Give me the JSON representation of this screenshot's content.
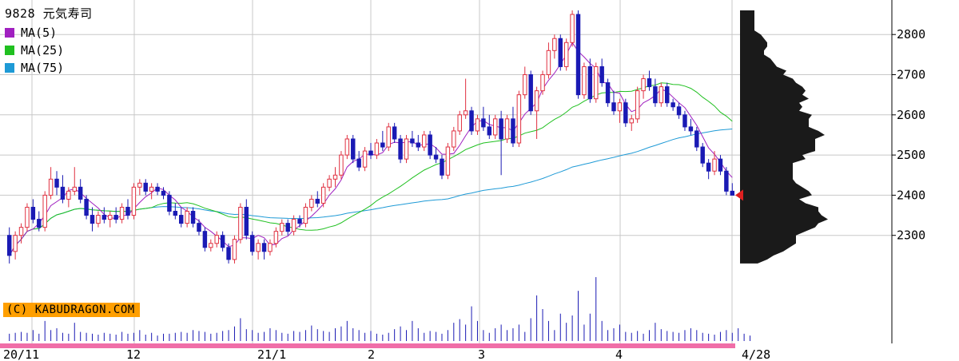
{
  "chart_data": {
    "type": "candlestick",
    "title": "9828 元気寿司",
    "legend": [
      {
        "name": "MA(5)",
        "color": "#a020c0"
      },
      {
        "name": "MA(25)",
        "color": "#20c020"
      },
      {
        "name": "MA(75)",
        "color": "#1e9ad6"
      }
    ],
    "credit": "(C) KABUDRAGON.COM",
    "y_ticks": [
      2300,
      2400,
      2500,
      2600,
      2700,
      2800
    ],
    "ylim": [
      2200,
      2870
    ],
    "x_labels": [
      "20/11",
      "12",
      "21/1",
      "2",
      "3",
      "4",
      "4/28"
    ],
    "last_close": 2400,
    "up_color": "#e03040",
    "down_color": "#1a1ab4",
    "candles": [
      {
        "o": 2300,
        "h": 2320,
        "l": 2230,
        "c": 2250
      },
      {
        "o": 2260,
        "h": 2310,
        "l": 2240,
        "c": 2300
      },
      {
        "o": 2300,
        "h": 2330,
        "l": 2280,
        "c": 2320
      },
      {
        "o": 2320,
        "h": 2380,
        "l": 2310,
        "c": 2370
      },
      {
        "o": 2370,
        "h": 2390,
        "l": 2330,
        "c": 2340
      },
      {
        "o": 2340,
        "h": 2360,
        "l": 2310,
        "c": 2320
      },
      {
        "o": 2320,
        "h": 2410,
        "l": 2310,
        "c": 2400
      },
      {
        "o": 2400,
        "h": 2470,
        "l": 2390,
        "c": 2440
      },
      {
        "o": 2440,
        "h": 2460,
        "l": 2400,
        "c": 2420
      },
      {
        "o": 2420,
        "h": 2450,
        "l": 2380,
        "c": 2390
      },
      {
        "o": 2390,
        "h": 2420,
        "l": 2370,
        "c": 2410
      },
      {
        "o": 2410,
        "h": 2470,
        "l": 2400,
        "c": 2420
      },
      {
        "o": 2420,
        "h": 2440,
        "l": 2380,
        "c": 2390
      },
      {
        "o": 2390,
        "h": 2400,
        "l": 2340,
        "c": 2350
      },
      {
        "o": 2350,
        "h": 2370,
        "l": 2310,
        "c": 2330
      },
      {
        "o": 2330,
        "h": 2360,
        "l": 2320,
        "c": 2350
      },
      {
        "o": 2350,
        "h": 2370,
        "l": 2330,
        "c": 2340
      },
      {
        "o": 2340,
        "h": 2360,
        "l": 2320,
        "c": 2350
      },
      {
        "o": 2350,
        "h": 2370,
        "l": 2330,
        "c": 2340
      },
      {
        "o": 2340,
        "h": 2380,
        "l": 2330,
        "c": 2370
      },
      {
        "o": 2370,
        "h": 2390,
        "l": 2340,
        "c": 2350
      },
      {
        "o": 2350,
        "h": 2430,
        "l": 2340,
        "c": 2420
      },
      {
        "o": 2420,
        "h": 2440,
        "l": 2400,
        "c": 2430
      },
      {
        "o": 2430,
        "h": 2440,
        "l": 2400,
        "c": 2410
      },
      {
        "o": 2410,
        "h": 2430,
        "l": 2390,
        "c": 2420
      },
      {
        "o": 2420,
        "h": 2430,
        "l": 2400,
        "c": 2410
      },
      {
        "o": 2410,
        "h": 2420,
        "l": 2390,
        "c": 2400
      },
      {
        "o": 2400,
        "h": 2410,
        "l": 2350,
        "c": 2360
      },
      {
        "o": 2360,
        "h": 2380,
        "l": 2340,
        "c": 2350
      },
      {
        "o": 2350,
        "h": 2370,
        "l": 2320,
        "c": 2330
      },
      {
        "o": 2330,
        "h": 2370,
        "l": 2320,
        "c": 2360
      },
      {
        "o": 2360,
        "h": 2370,
        "l": 2320,
        "c": 2330
      },
      {
        "o": 2330,
        "h": 2340,
        "l": 2300,
        "c": 2310
      },
      {
        "o": 2310,
        "h": 2320,
        "l": 2260,
        "c": 2270
      },
      {
        "o": 2270,
        "h": 2290,
        "l": 2260,
        "c": 2280
      },
      {
        "o": 2280,
        "h": 2310,
        "l": 2270,
        "c": 2300
      },
      {
        "o": 2300,
        "h": 2310,
        "l": 2260,
        "c": 2270
      },
      {
        "o": 2270,
        "h": 2280,
        "l": 2230,
        "c": 2240
      },
      {
        "o": 2240,
        "h": 2300,
        "l": 2230,
        "c": 2290
      },
      {
        "o": 2290,
        "h": 2380,
        "l": 2280,
        "c": 2370
      },
      {
        "o": 2370,
        "h": 2390,
        "l": 2290,
        "c": 2300
      },
      {
        "o": 2300,
        "h": 2310,
        "l": 2250,
        "c": 2260
      },
      {
        "o": 2260,
        "h": 2290,
        "l": 2240,
        "c": 2280
      },
      {
        "o": 2280,
        "h": 2290,
        "l": 2240,
        "c": 2260
      },
      {
        "o": 2260,
        "h": 2290,
        "l": 2250,
        "c": 2280
      },
      {
        "o": 2280,
        "h": 2320,
        "l": 2270,
        "c": 2310
      },
      {
        "o": 2310,
        "h": 2340,
        "l": 2300,
        "c": 2330
      },
      {
        "o": 2330,
        "h": 2340,
        "l": 2300,
        "c": 2310
      },
      {
        "o": 2310,
        "h": 2350,
        "l": 2300,
        "c": 2340
      },
      {
        "o": 2340,
        "h": 2350,
        "l": 2320,
        "c": 2330
      },
      {
        "o": 2330,
        "h": 2380,
        "l": 2320,
        "c": 2370
      },
      {
        "o": 2370,
        "h": 2400,
        "l": 2360,
        "c": 2390
      },
      {
        "o": 2390,
        "h": 2410,
        "l": 2370,
        "c": 2380
      },
      {
        "o": 2380,
        "h": 2430,
        "l": 2370,
        "c": 2420
      },
      {
        "o": 2420,
        "h": 2450,
        "l": 2410,
        "c": 2440
      },
      {
        "o": 2440,
        "h": 2470,
        "l": 2420,
        "c": 2450
      },
      {
        "o": 2450,
        "h": 2510,
        "l": 2440,
        "c": 2500
      },
      {
        "o": 2500,
        "h": 2550,
        "l": 2490,
        "c": 2540
      },
      {
        "o": 2540,
        "h": 2550,
        "l": 2480,
        "c": 2490
      },
      {
        "o": 2490,
        "h": 2510,
        "l": 2460,
        "c": 2470
      },
      {
        "o": 2470,
        "h": 2520,
        "l": 2460,
        "c": 2510
      },
      {
        "o": 2510,
        "h": 2530,
        "l": 2490,
        "c": 2500
      },
      {
        "o": 2500,
        "h": 2540,
        "l": 2490,
        "c": 2530
      },
      {
        "o": 2530,
        "h": 2560,
        "l": 2510,
        "c": 2520
      },
      {
        "o": 2520,
        "h": 2580,
        "l": 2510,
        "c": 2570
      },
      {
        "o": 2570,
        "h": 2580,
        "l": 2530,
        "c": 2540
      },
      {
        "o": 2540,
        "h": 2550,
        "l": 2480,
        "c": 2490
      },
      {
        "o": 2490,
        "h": 2550,
        "l": 2480,
        "c": 2540
      },
      {
        "o": 2540,
        "h": 2560,
        "l": 2520,
        "c": 2530
      },
      {
        "o": 2530,
        "h": 2550,
        "l": 2510,
        "c": 2520
      },
      {
        "o": 2520,
        "h": 2560,
        "l": 2510,
        "c": 2550
      },
      {
        "o": 2550,
        "h": 2560,
        "l": 2490,
        "c": 2500
      },
      {
        "o": 2500,
        "h": 2520,
        "l": 2480,
        "c": 2490
      },
      {
        "o": 2490,
        "h": 2500,
        "l": 2440,
        "c": 2450
      },
      {
        "o": 2450,
        "h": 2530,
        "l": 2440,
        "c": 2520
      },
      {
        "o": 2520,
        "h": 2570,
        "l": 2510,
        "c": 2560
      },
      {
        "o": 2560,
        "h": 2610,
        "l": 2550,
        "c": 2600
      },
      {
        "o": 2600,
        "h": 2690,
        "l": 2590,
        "c": 2610
      },
      {
        "o": 2610,
        "h": 2620,
        "l": 2550,
        "c": 2560
      },
      {
        "o": 2560,
        "h": 2600,
        "l": 2550,
        "c": 2590
      },
      {
        "o": 2590,
        "h": 2620,
        "l": 2560,
        "c": 2570
      },
      {
        "o": 2570,
        "h": 2600,
        "l": 2540,
        "c": 2550
      },
      {
        "o": 2550,
        "h": 2600,
        "l": 2540,
        "c": 2590
      },
      {
        "o": 2590,
        "h": 2610,
        "l": 2450,
        "c": 2540
      },
      {
        "o": 2540,
        "h": 2600,
        "l": 2530,
        "c": 2590
      },
      {
        "o": 2590,
        "h": 2620,
        "l": 2520,
        "c": 2530
      },
      {
        "o": 2530,
        "h": 2660,
        "l": 2520,
        "c": 2650
      },
      {
        "o": 2650,
        "h": 2720,
        "l": 2640,
        "c": 2700
      },
      {
        "o": 2700,
        "h": 2710,
        "l": 2600,
        "c": 2610
      },
      {
        "o": 2610,
        "h": 2670,
        "l": 2540,
        "c": 2660
      },
      {
        "o": 2660,
        "h": 2710,
        "l": 2650,
        "c": 2700
      },
      {
        "o": 2700,
        "h": 2780,
        "l": 2690,
        "c": 2760
      },
      {
        "o": 2760,
        "h": 2800,
        "l": 2740,
        "c": 2790
      },
      {
        "o": 2790,
        "h": 2800,
        "l": 2710,
        "c": 2720
      },
      {
        "o": 2720,
        "h": 2790,
        "l": 2710,
        "c": 2780
      },
      {
        "o": 2780,
        "h": 2860,
        "l": 2770,
        "c": 2850
      },
      {
        "o": 2850,
        "h": 2860,
        "l": 2640,
        "c": 2650
      },
      {
        "o": 2650,
        "h": 2730,
        "l": 2640,
        "c": 2720
      },
      {
        "o": 2720,
        "h": 2740,
        "l": 2630,
        "c": 2640
      },
      {
        "o": 2640,
        "h": 2730,
        "l": 2630,
        "c": 2720
      },
      {
        "o": 2720,
        "h": 2740,
        "l": 2670,
        "c": 2680
      },
      {
        "o": 2680,
        "h": 2690,
        "l": 2620,
        "c": 2630
      },
      {
        "o": 2630,
        "h": 2660,
        "l": 2600,
        "c": 2610
      },
      {
        "o": 2610,
        "h": 2640,
        "l": 2580,
        "c": 2630
      },
      {
        "o": 2630,
        "h": 2640,
        "l": 2570,
        "c": 2580
      },
      {
        "o": 2580,
        "h": 2600,
        "l": 2560,
        "c": 2590
      },
      {
        "o": 2590,
        "h": 2670,
        "l": 2580,
        "c": 2660
      },
      {
        "o": 2660,
        "h": 2700,
        "l": 2640,
        "c": 2690
      },
      {
        "o": 2690,
        "h": 2710,
        "l": 2660,
        "c": 2670
      },
      {
        "o": 2670,
        "h": 2690,
        "l": 2620,
        "c": 2630
      },
      {
        "o": 2630,
        "h": 2680,
        "l": 2620,
        "c": 2670
      },
      {
        "o": 2670,
        "h": 2680,
        "l": 2620,
        "c": 2630
      },
      {
        "o": 2630,
        "h": 2640,
        "l": 2610,
        "c": 2620
      },
      {
        "o": 2620,
        "h": 2630,
        "l": 2590,
        "c": 2600
      },
      {
        "o": 2600,
        "h": 2610,
        "l": 2560,
        "c": 2570
      },
      {
        "o": 2570,
        "h": 2590,
        "l": 2550,
        "c": 2560
      },
      {
        "o": 2560,
        "h": 2570,
        "l": 2510,
        "c": 2520
      },
      {
        "o": 2520,
        "h": 2530,
        "l": 2470,
        "c": 2480
      },
      {
        "o": 2480,
        "h": 2490,
        "l": 2440,
        "c": 2460
      },
      {
        "o": 2460,
        "h": 2510,
        "l": 2450,
        "c": 2490
      },
      {
        "o": 2490,
        "h": 2500,
        "l": 2450,
        "c": 2460
      },
      {
        "o": 2460,
        "h": 2470,
        "l": 2400,
        "c": 2410
      },
      {
        "o": 2410,
        "h": 2430,
        "l": 2400,
        "c": 2400
      }
    ],
    "volume": [
      8,
      9,
      10,
      9,
      12,
      8,
      22,
      12,
      14,
      9,
      8,
      20,
      10,
      9,
      8,
      7,
      9,
      8,
      7,
      10,
      8,
      9,
      12,
      7,
      9,
      6,
      8,
      8,
      9,
      10,
      9,
      12,
      11,
      10,
      8,
      9,
      11,
      12,
      16,
      25,
      13,
      12,
      9,
      10,
      14,
      12,
      9,
      8,
      11,
      10,
      12,
      17,
      13,
      11,
      10,
      14,
      16,
      22,
      14,
      12,
      9,
      11,
      8,
      7,
      9,
      13,
      16,
      12,
      22,
      14,
      9,
      11,
      10,
      8,
      12,
      20,
      24,
      18,
      38,
      22,
      12,
      9,
      14,
      18,
      12,
      14,
      18,
      10,
      25,
      50,
      35,
      22,
      12,
      30,
      20,
      28,
      55,
      18,
      30,
      70,
      22,
      12,
      14,
      18,
      10,
      9,
      11,
      8,
      12,
      20,
      13,
      11,
      10,
      9,
      12,
      14,
      12,
      9,
      8,
      7,
      10,
      12,
      9,
      14,
      8,
      6
    ]
  }
}
